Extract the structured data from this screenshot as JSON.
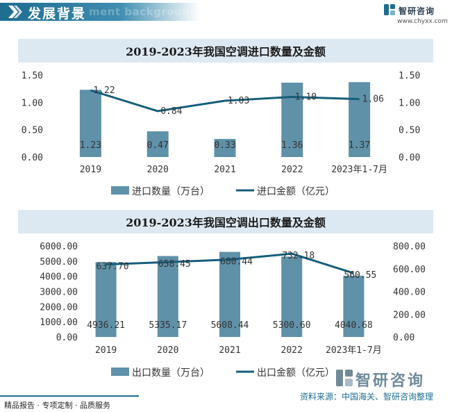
{
  "header": {
    "title": "发展背景",
    "ghost_text": "ment background",
    "logo_name": "智研咨询",
    "logo_url": "www.chyxx.com"
  },
  "chart_data": [
    {
      "type": "bar",
      "title": "2019-2023年我国空调进口数量及金额",
      "categories": [
        "2019",
        "2020",
        "2021",
        "2022",
        "2023年1-7月"
      ],
      "series": [
        {
          "name": "进口数量（万台）",
          "type": "bar",
          "axis": "left",
          "values": [
            1.23,
            0.47,
            0.33,
            1.36,
            1.37
          ],
          "labels": [
            "1.23",
            "0.47",
            "0.33",
            "1.36",
            "1.37"
          ]
        },
        {
          "name": "进口金额（亿元）",
          "type": "line",
          "axis": "right",
          "values": [
            1.22,
            0.84,
            1.03,
            1.1,
            1.06
          ],
          "labels": [
            "1.22",
            "0.84",
            "1.03",
            "1.10",
            "1.06"
          ]
        }
      ],
      "ylim_left": [
        0,
        1.5
      ],
      "ylim_right": [
        0,
        1.5
      ],
      "yticks_left": [
        "0.00",
        "0.50",
        "1.00",
        "1.50"
      ],
      "yticks_right": [
        "0.00",
        "0.50",
        "1.00",
        "1.50"
      ],
      "grid": false,
      "legend": "bottom",
      "colors": {
        "bar": "#5f91a9",
        "line": "#155e7a"
      }
    },
    {
      "type": "bar",
      "title": "2019-2023年我国空调出口数量及金额",
      "categories": [
        "2019",
        "2020",
        "2021",
        "2022",
        "2023年1-7月"
      ],
      "series": [
        {
          "name": "出口数量（万台）",
          "type": "bar",
          "axis": "left",
          "values": [
            4936.21,
            5335.17,
            5608.44,
            5300.6,
            4040.68
          ],
          "labels": [
            "4936.21",
            "5335.17",
            "5608.44",
            "5300.60",
            "4040.68"
          ]
        },
        {
          "name": "出口金额（亿元）",
          "type": "line",
          "axis": "right",
          "values": [
            637.7,
            658.45,
            680.44,
            732.18,
            560.55
          ],
          "labels": [
            "637.70",
            "658.45",
            "680.44",
            "732.18",
            "560.55"
          ]
        }
      ],
      "ylim_left": [
        0,
        6000
      ],
      "ylim_right": [
        0,
        800
      ],
      "yticks_left": [
        "0.00",
        "1000.00",
        "2000.00",
        "3000.00",
        "4000.00",
        "5000.00",
        "6000.00"
      ],
      "yticks_right": [
        "0.00",
        "200.00",
        "400.00",
        "600.00",
        "800.00"
      ],
      "grid": false,
      "legend": "bottom",
      "colors": {
        "bar": "#5f91a9",
        "line": "#155e7a"
      }
    }
  ],
  "footer": {
    "left": "精品报告 · 专项定制 · 品质服务",
    "right": "资料来源：中国海关、智研咨询整理",
    "logo_name": "智研咨询"
  }
}
